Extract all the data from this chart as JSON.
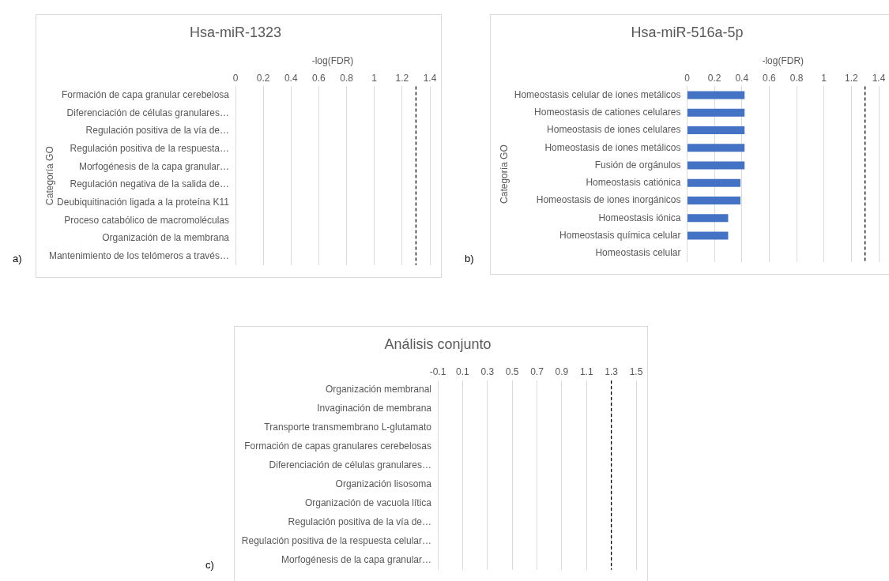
{
  "chart_data": [
    {
      "type": "bar",
      "orientation": "horizontal",
      "title": "Hsa-miR-1323",
      "xlabel": "-log(FDR)",
      "ylabel": "Categoría GO",
      "annotations": [
        "a)"
      ],
      "categories": [
        "Formación de capa granular cerebelosa",
        "Diferenciación de células granulares…",
        "Regulación positiva de la vía de…",
        "Regulación positiva de la respuesta…",
        "Morfogénesis de la capa granular…",
        "Regulación negativa de la salida de…",
        "Deubiquitinación ligada a la proteína K11",
        "Proceso catabólico de macromoléculas",
        "Organización de la membrana",
        "Mantenimiento de los telómeros a través…"
      ],
      "values": [
        0,
        0,
        0,
        0,
        0,
        0,
        0,
        0,
        0,
        0
      ],
      "color": "#4472c4",
      "xlim": [
        0,
        1.4
      ],
      "xticks": [
        0,
        0.2,
        0.4,
        0.6,
        0.8,
        1,
        1.2,
        1.4
      ],
      "grid": "x",
      "legend": false,
      "ref_lines": [
        {
          "axis": "x",
          "value": 1.3,
          "line_style": "dashed",
          "color": "#000000"
        }
      ]
    },
    {
      "type": "bar",
      "orientation": "horizontal",
      "title": "Hsa-miR-516a-5p",
      "xlabel": "-log(FDR)",
      "ylabel": "Categoría GO",
      "annotations": [
        "b)"
      ],
      "categories": [
        "Homeostasis celular de iones metálicos",
        "Homeostasis de cationes celulares",
        "Homeostasis de iones celulares",
        "Homeostasis de iones metálicos",
        "Fusión de orgánulos",
        "Homeostasis catiónica",
        "Homeostasis de iones inorgánicos",
        "Homeostasis iónica",
        "Homeostasis química celular",
        "Homeostasis celular"
      ],
      "values": [
        0.42,
        0.42,
        0.42,
        0.42,
        0.42,
        0.39,
        0.39,
        0.3,
        0.3,
        0
      ],
      "color": "#4472c4",
      "xlim": [
        0,
        1.4
      ],
      "xticks": [
        0,
        0.2,
        0.4,
        0.6,
        0.8,
        1,
        1.2,
        1.4
      ],
      "grid": "x",
      "legend": false,
      "ref_lines": [
        {
          "axis": "x",
          "value": 1.3,
          "line_style": "dashed",
          "color": "#000000"
        }
      ]
    },
    {
      "type": "bar",
      "orientation": "horizontal",
      "title": "Análisis conjunto",
      "annotations": [
        "c)"
      ],
      "categories": [
        "Organización membranal",
        "Invaginación de membrana",
        "Transporte transmembrano L-glutamato",
        "Formación de capas granulares cerebelosas",
        "Diferenciación de células granulares…",
        "Organización lisosoma",
        "Organización de vacuola lítica",
        "Regulación positiva de la vía de…",
        "Regulación positiva de la respuesta celular…",
        "Morfogénesis de la capa granular…"
      ],
      "values": [
        0,
        0,
        0,
        0,
        0,
        0,
        0,
        0,
        0,
        0
      ],
      "color": "#4472c4",
      "xlim": [
        -0.1,
        1.5
      ],
      "xticks": [
        -0.1,
        0.1,
        0.3,
        0.5,
        0.7,
        0.9,
        1.1,
        1.3,
        1.5
      ],
      "grid": "x",
      "legend": false,
      "ref_lines": [
        {
          "axis": "x",
          "value": 1.3,
          "line_style": "dashed",
          "color": "#000000"
        }
      ]
    }
  ]
}
